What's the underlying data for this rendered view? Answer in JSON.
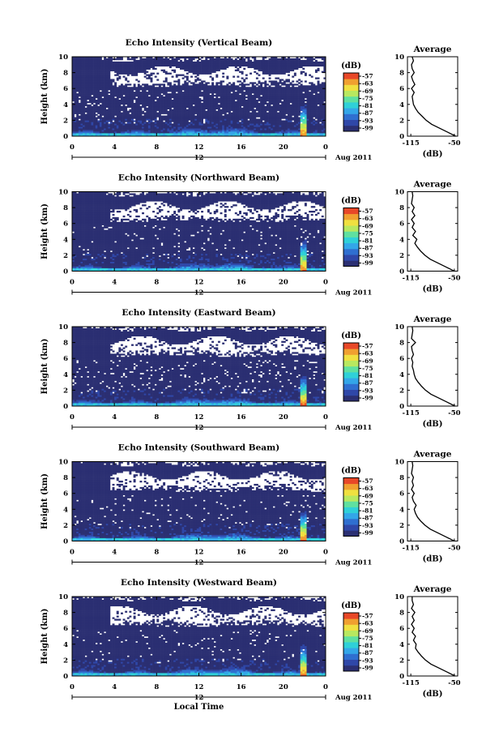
{
  "chart_data": [
    {
      "type": "heatmap",
      "title": "Echo Intensity (Vertical Beam)",
      "ylabel": "Height (km)",
      "xticks": [
        "0",
        "4",
        "8",
        "12",
        "16",
        "20",
        "0"
      ],
      "yticks": [
        "0",
        "2",
        "4",
        "6",
        "8",
        "10"
      ],
      "xlim": [
        0,
        24
      ],
      "ylim": [
        0,
        10
      ],
      "time_marker": "12",
      "date_label": "Aug 2011",
      "colorbar": {
        "label": "(dB)",
        "ticks": [
          "-57",
          "-63",
          "-69",
          "-75",
          "-81",
          "-87",
          "-93",
          "-99"
        ]
      },
      "profile": {
        "title": "Average",
        "xlabel": "(dB)",
        "xticks": [
          "-115",
          "-50"
        ],
        "yticks": [
          "0",
          "2",
          "4",
          "6",
          "8",
          "10"
        ],
        "x": [
          -48,
          -60,
          -72,
          -84,
          -92,
          -98,
          -104,
          -108,
          -111,
          -112,
          -113,
          -110,
          -114,
          -109,
          -112,
          -114,
          -110,
          -113,
          -114,
          -111,
          -113
        ],
        "y": [
          0,
          0.5,
          1,
          1.5,
          2,
          2.5,
          3,
          3.5,
          4,
          4.5,
          5,
          5.5,
          6,
          6.5,
          7,
          7.5,
          8,
          8.5,
          9,
          9.5,
          10
        ]
      }
    },
    {
      "type": "heatmap",
      "title": "Echo Intensity (Northward Beam)",
      "ylabel": "Height (km)",
      "xticks": [
        "0",
        "4",
        "8",
        "12",
        "16",
        "20",
        "0"
      ],
      "yticks": [
        "0",
        "2",
        "4",
        "6",
        "8",
        "10"
      ],
      "xlim": [
        0,
        24
      ],
      "ylim": [
        0,
        10
      ],
      "time_marker": "12",
      "date_label": "Aug 2011",
      "colorbar": {
        "label": "(dB)",
        "ticks": [
          "-57",
          "-63",
          "-69",
          "-75",
          "-81",
          "-87",
          "-93",
          "-99"
        ]
      },
      "profile": {
        "title": "Average",
        "xlabel": "(dB)",
        "xticks": [
          "-115",
          "-50"
        ],
        "yticks": [
          "0",
          "2",
          "4",
          "6",
          "8",
          "10"
        ],
        "x": [
          -50,
          -62,
          -74,
          -86,
          -94,
          -100,
          -105,
          -109,
          -106,
          -112,
          -108,
          -113,
          -110,
          -114,
          -109,
          -113,
          -110,
          -114,
          -113,
          -112,
          -113
        ],
        "y": [
          0,
          0.5,
          1,
          1.5,
          2,
          2.5,
          3,
          3.5,
          4,
          4.5,
          5,
          5.5,
          6,
          6.5,
          7,
          7.5,
          8,
          8.5,
          9,
          9.5,
          10
        ]
      }
    },
    {
      "type": "heatmap",
      "title": "Echo Intensity (Eastward Beam)",
      "ylabel": "Height (km)",
      "xticks": [
        "0",
        "4",
        "8",
        "12",
        "16",
        "20",
        "0"
      ],
      "yticks": [
        "0",
        "2",
        "4",
        "6",
        "8",
        "10"
      ],
      "xlim": [
        0,
        24
      ],
      "ylim": [
        0,
        10
      ],
      "time_marker": "12",
      "date_label": "Aug 2011",
      "colorbar": {
        "label": "(dB)",
        "ticks": [
          "-57",
          "-63",
          "-69",
          "-75",
          "-81",
          "-87",
          "-93",
          "-99"
        ]
      },
      "profile": {
        "title": "Average",
        "xlabel": "(dB)",
        "xticks": [
          "-115",
          "-50"
        ],
        "yticks": [
          "0",
          "2",
          "4",
          "6",
          "8",
          "10"
        ],
        "x": [
          -49,
          -61,
          -73,
          -85,
          -93,
          -99,
          -104,
          -108,
          -110,
          -111,
          -113,
          -112,
          -114,
          -111,
          -113,
          -114,
          -108,
          -114,
          -113,
          -112,
          -113
        ],
        "y": [
          0,
          0.5,
          1,
          1.5,
          2,
          2.5,
          3,
          3.5,
          4,
          4.5,
          5,
          5.5,
          6,
          6.5,
          7,
          7.5,
          8,
          8.5,
          9,
          9.5,
          10
        ]
      }
    },
    {
      "type": "heatmap",
      "title": "Echo Intensity (Southward Beam)",
      "ylabel": "Height (km)",
      "xticks": [
        "0",
        "4",
        "8",
        "12",
        "16",
        "20",
        "0"
      ],
      "yticks": [
        "0",
        "2",
        "4",
        "6",
        "8",
        "10"
      ],
      "xlim": [
        0,
        24
      ],
      "ylim": [
        0,
        10
      ],
      "time_marker": "12",
      "date_label": "Aug 2011",
      "colorbar": {
        "label": "(dB)",
        "ticks": [
          "-57",
          "-63",
          "-69",
          "-75",
          "-81",
          "-87",
          "-93",
          "-99"
        ]
      },
      "profile": {
        "title": "Average",
        "xlabel": "(dB)",
        "xticks": [
          "-115",
          "-50"
        ],
        "yticks": [
          "0",
          "2",
          "4",
          "6",
          "8",
          "10"
        ],
        "x": [
          -50,
          -62,
          -74,
          -86,
          -94,
          -100,
          -105,
          -108,
          -110,
          -107,
          -111,
          -113,
          -110,
          -114,
          -111,
          -113,
          -111,
          -114,
          -113,
          -112,
          -113
        ],
        "y": [
          0,
          0.5,
          1,
          1.5,
          2,
          2.5,
          3,
          3.5,
          4,
          4.5,
          5,
          5.5,
          6,
          6.5,
          7,
          7.5,
          8,
          8.5,
          9,
          9.5,
          10
        ]
      }
    },
    {
      "type": "heatmap",
      "title": "Echo Intensity (Westward Beam)",
      "ylabel": "Height (km)",
      "xlabel": "Local Time",
      "xticks": [
        "0",
        "4",
        "8",
        "12",
        "16",
        "20",
        "0"
      ],
      "yticks": [
        "0",
        "2",
        "4",
        "6",
        "8",
        "10"
      ],
      "xlim": [
        0,
        24
      ],
      "ylim": [
        0,
        10
      ],
      "time_marker": "12",
      "date_label": "Aug 2011",
      "colorbar": {
        "label": "(dB)",
        "ticks": [
          "-57",
          "-63",
          "-69",
          "-75",
          "-81",
          "-87",
          "-93",
          "-99"
        ]
      },
      "profile": {
        "title": "Average",
        "xlabel": "(dB)",
        "xticks": [
          "-115",
          "-50"
        ],
        "yticks": [
          "0",
          "2",
          "4",
          "6",
          "8",
          "10"
        ],
        "x": [
          -49,
          -61,
          -73,
          -85,
          -93,
          -99,
          -104,
          -108,
          -107,
          -111,
          -108,
          -113,
          -110,
          -114,
          -110,
          -113,
          -109,
          -114,
          -111,
          -113,
          -113
        ],
        "y": [
          0,
          0.5,
          1,
          1.5,
          2,
          2.5,
          3,
          3.5,
          4,
          4.5,
          5,
          5.5,
          6,
          6.5,
          7,
          7.5,
          8,
          8.5,
          9,
          9.5,
          10
        ]
      }
    }
  ],
  "colors": {
    "background_echo": "#2b2f72",
    "colormap": [
      "#2b2f72",
      "#2f47a8",
      "#2f6fd0",
      "#33a6e8",
      "#2fd0d8",
      "#5fe0a0",
      "#b8e860",
      "#f0e040",
      "#f0a030",
      "#e84828"
    ],
    "axis": "#000000"
  }
}
